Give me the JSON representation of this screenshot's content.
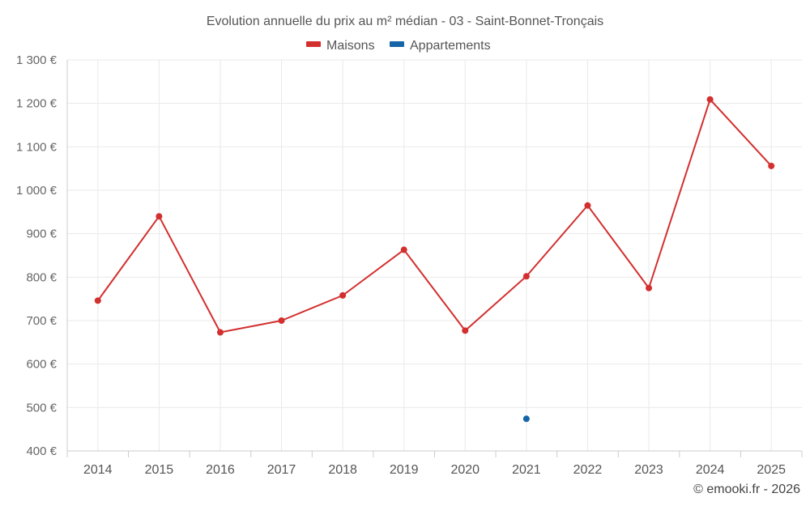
{
  "chart_data": {
    "type": "line",
    "title": "Evolution annuelle du prix au m² médian - 03 - Saint-Bonnet-Tronçais",
    "categories": [
      "2014",
      "2015",
      "2016",
      "2017",
      "2018",
      "2019",
      "2020",
      "2021",
      "2022",
      "2023",
      "2024",
      "2025"
    ],
    "series": [
      {
        "name": "Maisons",
        "color": "#d32f2f",
        "values": [
          746,
          940,
          673,
          700,
          758,
          863,
          677,
          802,
          965,
          775,
          1209,
          1056
        ]
      },
      {
        "name": "Appartements",
        "color": "#1565a8",
        "values": [
          null,
          null,
          null,
          null,
          null,
          null,
          null,
          474,
          null,
          null,
          null,
          null
        ]
      }
    ],
    "ylim": [
      400,
      1300
    ],
    "yticks": [
      400,
      500,
      600,
      700,
      800,
      900,
      1000,
      1100,
      1200,
      1300
    ],
    "ytick_labels": [
      "400 €",
      "500 €",
      "600 €",
      "700 €",
      "800 €",
      "900 €",
      "1 000 €",
      "1 100 €",
      "1 200 €",
      "1 300 €"
    ],
    "xlabel": "",
    "ylabel": "",
    "grid": true,
    "legend_position": "top-center"
  },
  "credit": "© emooki.fr - 2026"
}
